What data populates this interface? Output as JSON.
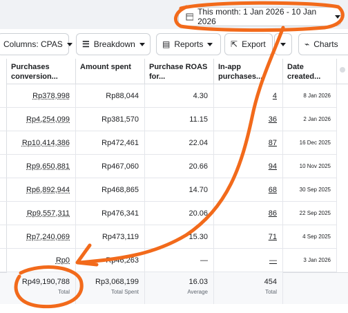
{
  "date_range": {
    "label": "This month: 1 Jan 2026 - 10 Jan 2026"
  },
  "toolbar": [
    "Columns: CPAS",
    "Breakdown",
    "Reports",
    "Export",
    "Charts"
  ],
  "table": {
    "headers": [
      "Purchases conversion...",
      "Amount spent",
      "Purchase ROAS for...",
      "In-app purchases...",
      "Date created..."
    ],
    "rows": [
      [
        "Rp378,998",
        "Rp88,044",
        "4.30",
        "4",
        "8 Jan 2026"
      ],
      [
        "Rp4,254,099",
        "Rp381,570",
        "11.15",
        "36",
        "2 Jan 2026"
      ],
      [
        "Rp10,414,386",
        "Rp472,461",
        "22.04",
        "87",
        "16 Dec 2025"
      ],
      [
        "Rp9,650,881",
        "Rp467,060",
        "20.66",
        "94",
        "10 Nov 2025"
      ],
      [
        "Rp6,892,944",
        "Rp468,865",
        "14.70",
        "68",
        "30 Sep 2025"
      ],
      [
        "Rp9,557,311",
        "Rp476,341",
        "20.06",
        "86",
        "22 Sep 2025"
      ],
      [
        "Rp7,240,069",
        "Rp473,119",
        "15.30",
        "71",
        "4 Sep 2025"
      ],
      [
        "Rp0",
        "Rp46,263",
        "—",
        "—",
        "3 Jan 2026"
      ]
    ],
    "totals": [
      {
        "value": "Rp49,190,788",
        "label": "Total"
      },
      {
        "value": "Rp3,068,199",
        "label": "Total Spent"
      },
      {
        "value": "16.03",
        "label": "Average"
      },
      {
        "value": "454",
        "label": "Total"
      }
    ]
  }
}
